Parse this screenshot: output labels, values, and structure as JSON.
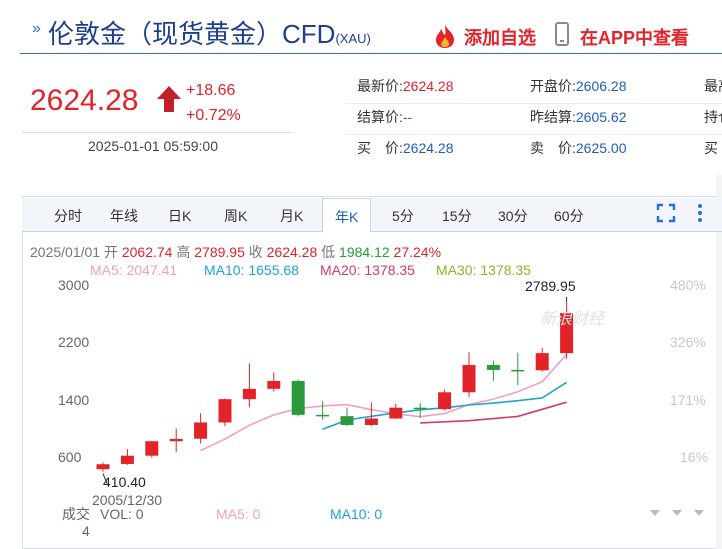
{
  "header": {
    "title": "伦敦金（现货黄金）CFD",
    "symbol": "(XAU)",
    "add_watch": "添加自选",
    "view_app": "在APP中查看"
  },
  "quote": {
    "price": "2624.28",
    "change": "+18.66",
    "change_pct": "+0.72%",
    "time": "2025-01-01 05:59:00",
    "stats": [
      {
        "label": "最新价:",
        "value": "2624.28",
        "color": "red"
      },
      {
        "label": "开盘价:",
        "value": "2606.28",
        "color": "blue"
      },
      {
        "label": "最高",
        "value": "",
        "color": "blue"
      },
      {
        "label": "结算价:",
        "value": "--",
        "color": "blue"
      },
      {
        "label": "昨结算:",
        "value": "2605.62",
        "color": "blue"
      },
      {
        "label": "持仓",
        "value": "",
        "color": "blue"
      },
      {
        "label": "买　价:",
        "value": "2624.28",
        "color": "blue"
      },
      {
        "label": "卖　价:",
        "value": "2625.00",
        "color": "blue"
      },
      {
        "label": "买",
        "value": "",
        "color": "blue"
      }
    ]
  },
  "tabs": [
    "分时",
    "年线",
    "日K",
    "周K",
    "月K",
    "年K",
    "5分",
    "15分",
    "30分",
    "60分"
  ],
  "active_tab": "年K",
  "ohlc": {
    "date": "2025/01/01",
    "open_label": "开",
    "open": "2062.74",
    "high_label": "高",
    "high": "2789.95",
    "close_label": "收",
    "close": "2624.28",
    "low_label": "低",
    "low": "1984.12",
    "pct": "27.24%"
  },
  "ma_legend": [
    {
      "label": "MA5: 2047.41",
      "color": "#f4a0bd"
    },
    {
      "label": "MA10: 1655.68",
      "color": "#1fa3d1"
    },
    {
      "label": "MA20: 1378.35",
      "color": "#d23c6a"
    },
    {
      "label": "MA30: 1378.35",
      "color": "#8fb32a"
    }
  ],
  "chart_data": {
    "type": "candlestick",
    "y_ticks": [
      "3000",
      "2200",
      "1400",
      "600"
    ],
    "y_tick_values": [
      3000,
      2200,
      1400,
      600
    ],
    "pct_ticks": [
      "480%",
      "326%",
      "171%",
      "16%"
    ],
    "pct_tick_values": [
      3000,
      2200,
      1400,
      600
    ],
    "ylim": [
      200,
      3100
    ],
    "max_label": "2789.95",
    "min_label": "410.40",
    "min_date": "2005/12/30",
    "watermark": "新浪财经",
    "up_color": "#e2232a",
    "down_color": "#2a9a3c",
    "candles": [
      {
        "year": 2005,
        "o": 443,
        "h": 537,
        "l": 410,
        "c": 513
      },
      {
        "year": 2006,
        "o": 517,
        "h": 725,
        "l": 505,
        "c": 632
      },
      {
        "year": 2007,
        "o": 632,
        "h": 842,
        "l": 603,
        "c": 834
      },
      {
        "year": 2008,
        "o": 834,
        "h": 1011,
        "l": 681,
        "c": 866
      },
      {
        "year": 2009,
        "o": 869,
        "h": 1226,
        "l": 801,
        "c": 1096
      },
      {
        "year": 2010,
        "o": 1096,
        "h": 1431,
        "l": 1045,
        "c": 1421
      },
      {
        "year": 2011,
        "o": 1421,
        "h": 1921,
        "l": 1308,
        "c": 1565
      },
      {
        "year": 2012,
        "o": 1565,
        "h": 1795,
        "l": 1527,
        "c": 1675
      },
      {
        "year": 2013,
        "o": 1675,
        "h": 1694,
        "l": 1181,
        "c": 1202
      },
      {
        "year": 2014,
        "o": 1202,
        "h": 1392,
        "l": 1132,
        "c": 1184
      },
      {
        "year": 2015,
        "o": 1184,
        "h": 1307,
        "l": 1046,
        "c": 1061
      },
      {
        "year": 2016,
        "o": 1061,
        "h": 1375,
        "l": 1046,
        "c": 1151
      },
      {
        "year": 2017,
        "o": 1151,
        "h": 1357,
        "l": 1146,
        "c": 1302
      },
      {
        "year": 2018,
        "o": 1302,
        "h": 1365,
        "l": 1160,
        "c": 1282
      },
      {
        "year": 2019,
        "o": 1282,
        "h": 1557,
        "l": 1266,
        "c": 1517
      },
      {
        "year": 2020,
        "o": 1517,
        "h": 2075,
        "l": 1451,
        "c": 1898
      },
      {
        "year": 2021,
        "o": 1898,
        "h": 1959,
        "l": 1677,
        "c": 1829
      },
      {
        "year": 2022,
        "o": 1829,
        "h": 2070,
        "l": 1615,
        "c": 1824
      },
      {
        "year": 2023,
        "o": 1824,
        "h": 2135,
        "l": 1804,
        "c": 2063
      },
      {
        "year": 2024,
        "o": 2063,
        "h": 2790,
        "l": 1984,
        "c": 2624
      }
    ],
    "ma5": [
      null,
      null,
      null,
      null,
      705,
      864,
      1056,
      1201,
      1290,
      1327,
      1345,
      1274,
      1217,
      1176,
      1219,
      1346,
      1422,
      1524,
      1663,
      2047
    ],
    "ma10": [
      null,
      null,
      null,
      null,
      null,
      null,
      null,
      null,
      null,
      1000,
      1130,
      1182,
      1230,
      1272,
      1300,
      1340,
      1366,
      1400,
      1438,
      1656
    ],
    "ma20": [
      null,
      null,
      null,
      null,
      null,
      null,
      null,
      null,
      null,
      null,
      null,
      null,
      null,
      null,
      null,
      null,
      null,
      null,
      null,
      1378
    ]
  },
  "volume": {
    "label_top": "成交",
    "label_bottom": "4",
    "vol": "VOL: 0",
    "ma5": "MA5: 0",
    "ma10": "MA10: 0",
    "vol_color": "#666666",
    "ma5_color": "#f4a0bd",
    "ma10_color": "#1fa3d1"
  }
}
